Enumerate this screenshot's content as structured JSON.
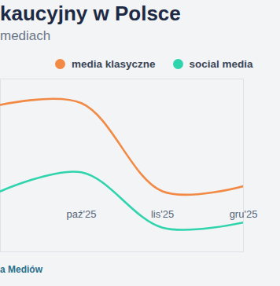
{
  "chart_data": {
    "type": "line",
    "title": "kaucyjny w Polsce",
    "subtitle": "mediach",
    "caption": "a Mediów",
    "categories": [
      null,
      "paź'25",
      "lis'25",
      "gru'25"
    ],
    "series": [
      {
        "name": "media klasyczne",
        "color": "#f28a45",
        "values": [
          85,
          86,
          35,
          38
        ]
      },
      {
        "name": "social media",
        "color": "#2fd4ad",
        "values": [
          35,
          46,
          14,
          17
        ]
      }
    ],
    "ylim": [
      0,
      100
    ],
    "legend": "top",
    "tick_labels": "x",
    "grid": false
  }
}
